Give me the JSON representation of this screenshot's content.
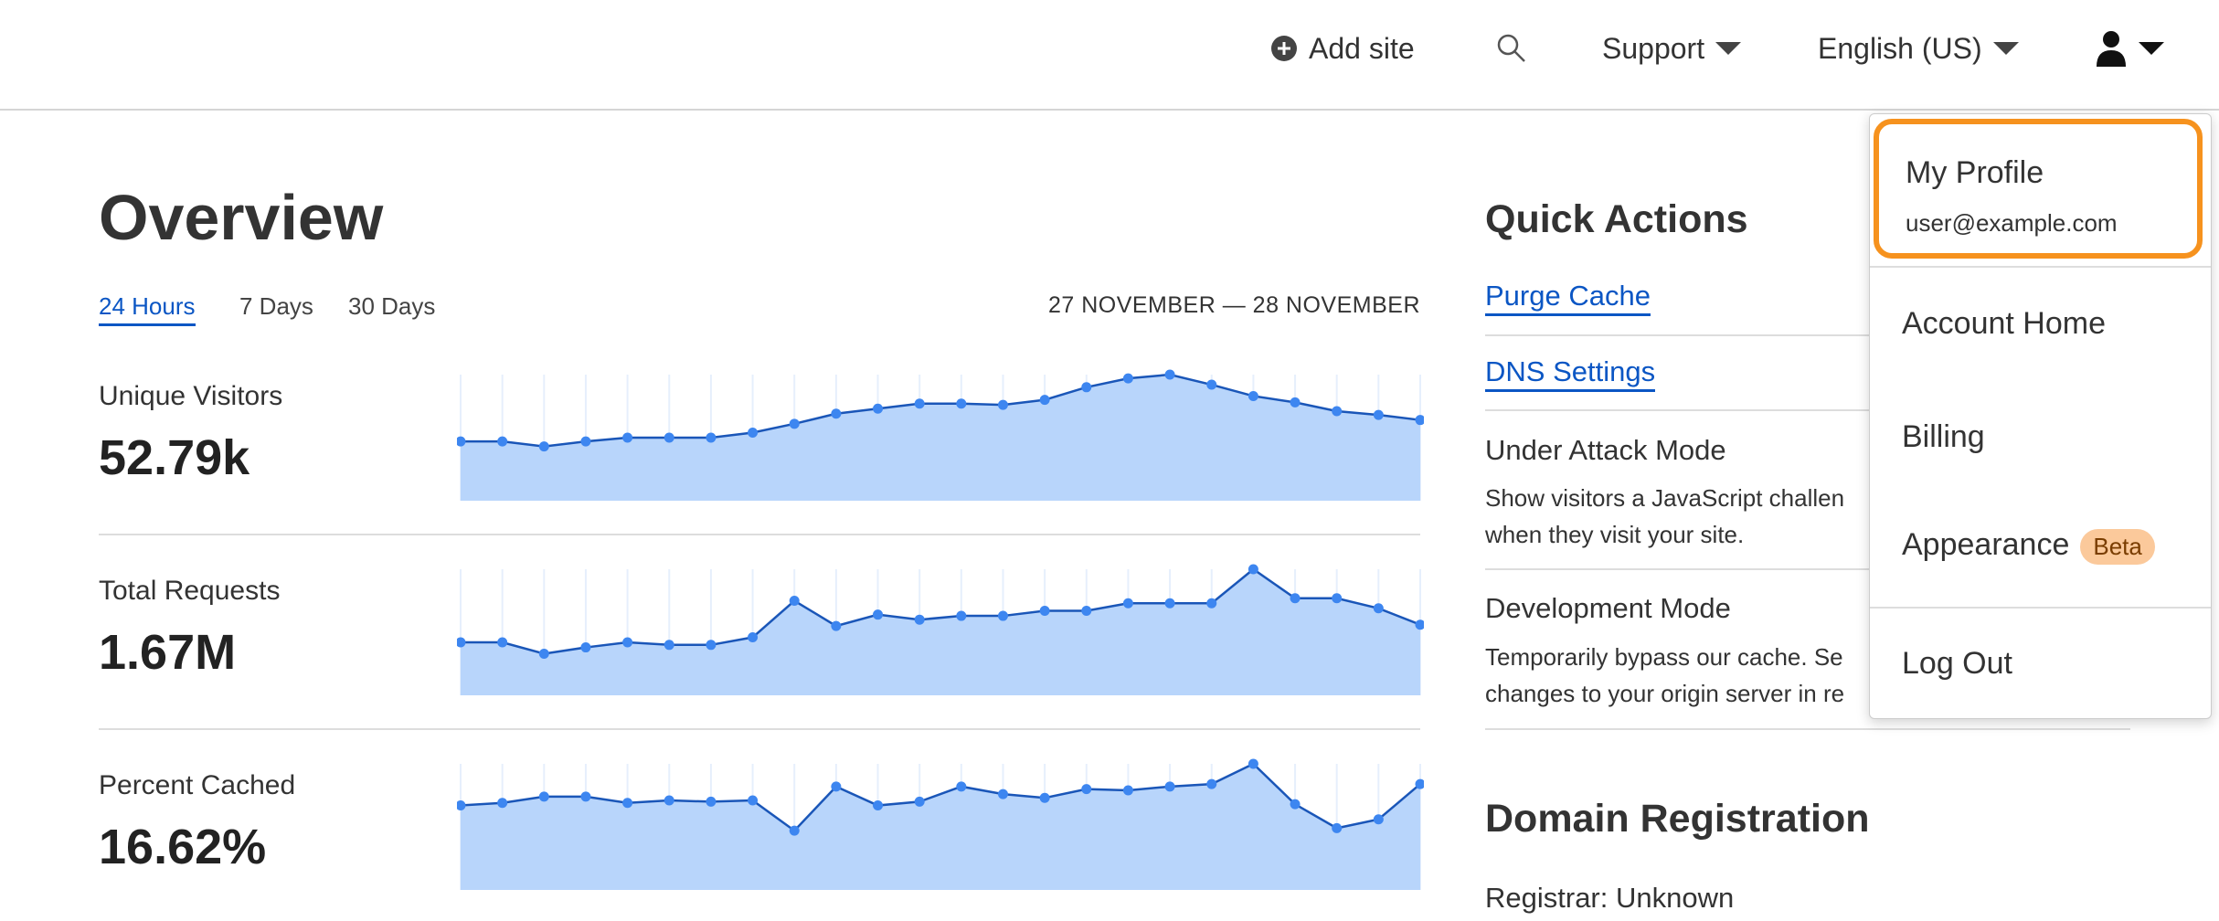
{
  "header": {
    "add_site": "Add site",
    "support": "Support",
    "language": "English (US)",
    "icons": [
      "plus-circle-icon",
      "search-icon",
      "user-icon",
      "caret-down-icon"
    ]
  },
  "overview": {
    "title": "Overview",
    "tabs": [
      {
        "label": "24 Hours",
        "active": true
      },
      {
        "label": "7 Days"
      },
      {
        "label": "30 Days"
      }
    ],
    "date_range": "27 NOVEMBER — 28 NOVEMBER"
  },
  "metrics": [
    {
      "label": "Unique Visitors",
      "value": "52.79k"
    },
    {
      "label": "Total Requests",
      "value": "1.67M"
    },
    {
      "label": "Percent Cached",
      "value": "16.62%"
    }
  ],
  "chart_data": [
    {
      "type": "area",
      "series": [
        {
          "values": [
            47,
            47,
            43,
            47,
            50,
            50,
            50,
            54,
            61,
            69,
            73,
            77,
            77,
            76,
            80,
            90,
            97,
            100,
            92,
            83,
            78,
            71,
            68,
            64
          ]
        }
      ],
      "ylim": [
        0,
        100
      ],
      "grid": "vertical"
    },
    {
      "type": "area",
      "series": [
        {
          "values": [
            42,
            42,
            33,
            38,
            42,
            40,
            40,
            46,
            75,
            55,
            64,
            60,
            63,
            63,
            67,
            67,
            73,
            73,
            73,
            100,
            77,
            77,
            69,
            56
          ]
        }
      ],
      "ylim": [
        0,
        100
      ],
      "grid": "vertical"
    },
    {
      "type": "area",
      "series": [
        {
          "values": [
            67,
            69,
            74,
            74,
            69,
            71,
            70,
            71,
            47,
            82,
            67,
            70,
            82,
            76,
            73,
            80,
            79,
            82,
            84,
            100,
            68,
            49,
            56,
            84
          ]
        }
      ],
      "ylim": [
        0,
        100
      ],
      "grid": "vertical"
    }
  ],
  "colors": {
    "line": "#1a56b8",
    "point": "#3d86f0",
    "fill": "#b8d5fb",
    "link": "#0b56c4",
    "highlight": "#f6921e",
    "beta_bg": "#fbc99b"
  },
  "quick_actions": {
    "title": "Quick Actions",
    "purge": "Purge Cache",
    "dns": "DNS Settings",
    "under_attack": {
      "title": "Under Attack Mode",
      "desc1": "Show visitors a JavaScript challen",
      "desc2": "when they visit your site."
    },
    "dev_mode": {
      "title": "Development Mode",
      "desc1": "Temporarily bypass our cache. Se",
      "desc2": "changes to your origin server in re"
    }
  },
  "domain": {
    "title": "Domain Registration",
    "registrar": "Registrar: Unknown"
  },
  "dropdown": {
    "profile": "My Profile",
    "email": "user@example.com",
    "account_home": "Account Home",
    "billing": "Billing",
    "appearance": "Appearance",
    "beta": "Beta",
    "logout": "Log Out"
  }
}
